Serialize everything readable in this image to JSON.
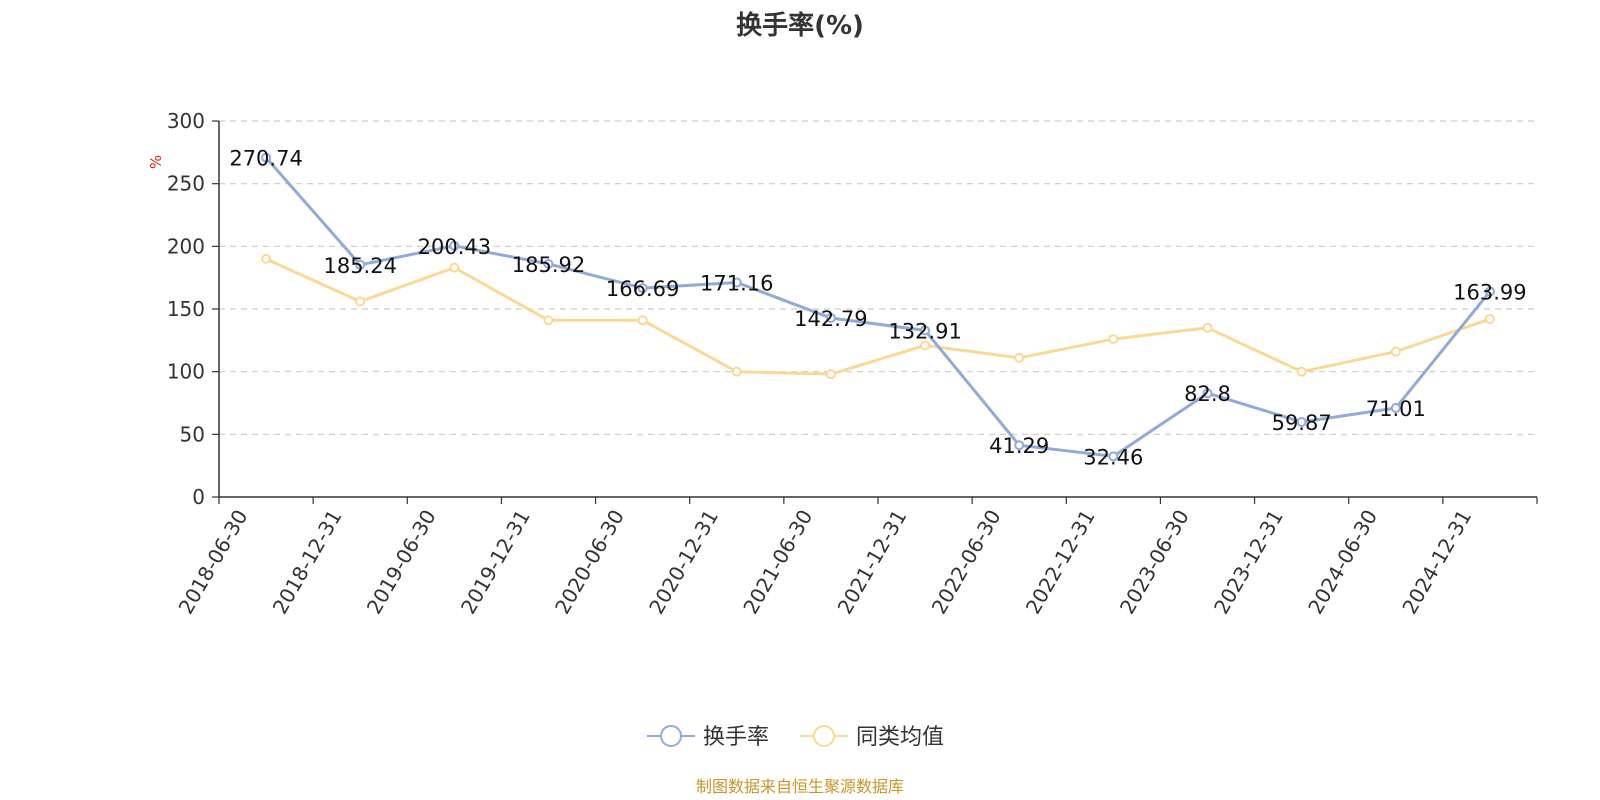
{
  "chart_data": {
    "type": "line",
    "title": "换手率(%)",
    "ylabel": "%",
    "ylim": [
      0,
      300
    ],
    "yticks": [
      0,
      50,
      100,
      150,
      200,
      250,
      300
    ],
    "grid": true,
    "legend_position": "bottom-center",
    "categories": [
      "2018-06-30",
      "2018-12-31",
      "2019-06-30",
      "2019-12-31",
      "2020-06-30",
      "2020-12-31",
      "2021-06-30",
      "2021-12-31",
      "2022-06-30",
      "2022-12-31",
      "2023-06-30",
      "2023-12-31",
      "2024-06-30",
      "2024-12-31"
    ],
    "series": [
      {
        "name": "换手率",
        "color": "#8fabd8",
        "values": [
          270.74,
          185.24,
          200.43,
          185.92,
          166.69,
          171.16,
          142.79,
          132.91,
          41.29,
          32.46,
          82.8,
          59.87,
          71.01,
          163.99
        ],
        "labels": [
          "270.74",
          "185.24",
          "200.43",
          "185.92",
          "166.69",
          "171.16",
          "142.79",
          "132.91",
          "41.29",
          "32.46",
          "82.8",
          "59.87",
          "71.01",
          "163.99"
        ]
      },
      {
        "name": "同类均值",
        "color": "#fad996",
        "values": [
          190,
          156,
          183,
          141,
          141,
          100,
          98,
          121,
          111,
          126,
          135,
          100,
          116,
          142
        ]
      }
    ],
    "source": "制图数据来自恒生聚源数据库"
  }
}
